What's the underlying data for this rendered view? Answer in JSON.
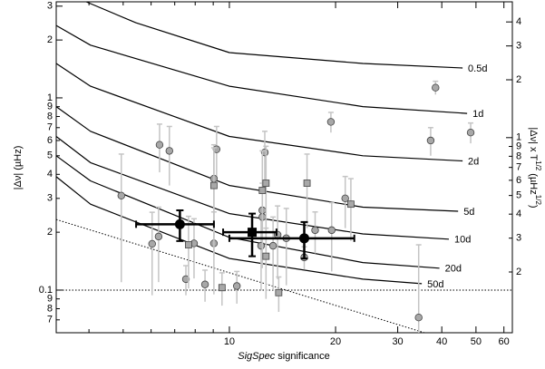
{
  "chart_data": {
    "type": "scatter",
    "y_label": "|Δν| (µHz)",
    "y2_label": [
      "|Δν|  x  T",
      "1/2",
      "  (µHz",
      "1/2",
      ")"
    ],
    "x_label_italic": "SigSpec",
    "x_label": "significance",
    "xlog": true,
    "ylog": true,
    "xlim": [
      3.23,
      63.4
    ],
    "ylim": [
      0.06,
      3.16
    ],
    "y2lim": [
      0.0966,
      5.09
    ],
    "xticks": [
      10,
      20,
      30,
      40,
      50,
      60
    ],
    "xticks_minor": [
      4,
      5,
      6,
      7,
      8,
      9
    ],
    "yticks": [
      {
        "value": 0.07,
        "label": "7"
      },
      {
        "value": 0.08,
        "label": "8"
      },
      {
        "value": 0.09,
        "label": "9"
      },
      0.1,
      {
        "value": 0.2,
        "label": "2"
      },
      {
        "value": 0.3,
        "label": "3"
      },
      {
        "value": 0.4,
        "label": "4"
      },
      {
        "value": 0.5,
        "label": "5"
      },
      {
        "value": 0.6,
        "label": "6"
      },
      {
        "value": 0.7,
        "label": "7"
      },
      {
        "value": 0.8,
        "label": "8"
      },
      {
        "value": 0.9,
        "label": "9"
      },
      1,
      2,
      3
    ],
    "y2ticks": [
      {
        "value": 0.2,
        "label": "2"
      },
      {
        "value": 0.3,
        "label": "3"
      },
      {
        "value": 0.4,
        "label": "4"
      },
      {
        "value": 0.5,
        "label": "5"
      },
      {
        "value": 0.6,
        "label": "6"
      },
      {
        "value": 0.7,
        "label": "7"
      },
      {
        "value": 0.8,
        "label": "8"
      },
      {
        "value": 0.9,
        "label": "9"
      },
      1,
      2,
      3,
      4
    ],
    "curves": [
      {
        "name": "0.5d",
        "color": "#000000",
        "x": [
          3.93,
          5.43,
          10,
          23.9,
          45.8
        ],
        "values": [
          3.16,
          2.46,
          1.72,
          1.51,
          1.43
        ]
      },
      {
        "name": "1d",
        "color": "#000000",
        "x": [
          3.23,
          4.04,
          10,
          23.9,
          47.2
        ],
        "values": [
          2.38,
          1.88,
          1.15,
          0.9,
          0.83
        ]
      },
      {
        "name": "2d",
        "color": "#000000",
        "x": [
          3.23,
          4.04,
          10,
          23.9,
          45.8
        ],
        "values": [
          1.51,
          1.15,
          0.63,
          0.5,
          0.47
        ]
      },
      {
        "name": "5d",
        "color": "#000000",
        "x": [
          3.23,
          4.04,
          10,
          23.9,
          44.5
        ],
        "values": [
          0.9,
          0.67,
          0.35,
          0.27,
          0.257
        ]
      },
      {
        "name": "10d",
        "color": "#000000",
        "x": [
          3.23,
          4.04,
          10,
          23.9,
          41.9
        ],
        "values": [
          0.63,
          0.46,
          0.25,
          0.196,
          0.184
        ]
      },
      {
        "name": "20d",
        "color": "#000000",
        "x": [
          3.23,
          4.04,
          10,
          23.9,
          39.4
        ],
        "values": [
          0.5,
          0.37,
          0.188,
          0.139,
          0.13
        ]
      },
      {
        "name": "50d",
        "color": "#000000",
        "x": [
          3.23,
          4.04,
          10,
          23.9,
          35.1
        ],
        "values": [
          0.389,
          0.28,
          0.146,
          0.114,
          0.108
        ]
      }
    ],
    "dotted_lines": [
      {
        "x": [
          3.23,
          63.4
        ],
        "values": [
          0.1,
          0.1
        ]
      },
      {
        "x": [
          3.23,
          35.7
        ],
        "values": [
          0.233,
          0.06
        ]
      }
    ],
    "circles": {
      "color": "#a8a8a8",
      "x": [
        4.94,
        6.34,
        6.76,
        9.2,
        9.04,
        12.6,
        19.4,
        38.4,
        37.2,
        48.3,
        21.3,
        12.4,
        12.4,
        6.3,
        6.04,
        7.94,
        9.04,
        12.3,
        13.3,
        14.5,
        13.7,
        17.5,
        19.5,
        7.53,
        8.53,
        10.5,
        16.3,
        34.4
      ],
      "values": [
        0.31,
        0.57,
        0.53,
        0.54,
        0.38,
        0.52,
        0.75,
        1.13,
        0.6,
        0.66,
        0.3,
        0.26,
        0.24,
        0.19,
        0.174,
        0.175,
        0.175,
        0.17,
        0.17,
        0.186,
        0.194,
        0.205,
        0.205,
        0.114,
        0.107,
        0.105,
        0.148,
        0.072
      ],
      "errors": [
        0.2,
        0.16,
        0.18,
        0.17,
        0.19,
        0.15,
        0.09,
        0.09,
        0.1,
        0.08,
        0.09,
        0.1,
        0.08,
        0.08,
        0.08,
        0.06,
        0.08,
        0.07,
        0.07,
        0.08,
        0.08,
        0.05,
        0.08,
        0.02,
        0.02,
        0.02,
        0.02,
        0.1
      ]
    },
    "squares": {
      "color": "#a8a8a8",
      "x": [
        9.04,
        12.7,
        12.4,
        16.6,
        22.1,
        7.66,
        9.53,
        12.7,
        13.8
      ],
      "values": [
        0.35,
        0.36,
        0.33,
        0.36,
        0.28,
        0.172,
        0.103,
        0.15,
        0.097
      ],
      "errors": [
        0.2,
        0.2,
        0.2,
        0.15,
        0.1,
        0.07,
        0.02,
        0.06,
        0.02
      ]
    },
    "means": {
      "color": "#000000",
      "marker": [
        "circle",
        "square",
        "circle"
      ],
      "x": [
        7.24,
        11.6,
        16.3
      ],
      "values": [
        0.22,
        0.2,
        0.186
      ],
      "xerrors": [
        1.8,
        2,
        6.3
      ],
      "errors": [
        0.04,
        0.05,
        0.04
      ]
    }
  }
}
